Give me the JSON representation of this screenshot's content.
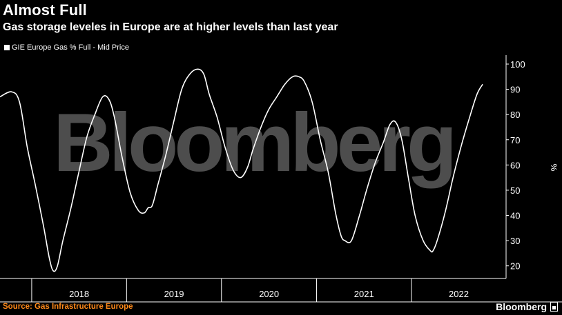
{
  "header": {
    "title": "Almost Full",
    "subtitle": "Gas storage leveles in Europe are at higher levels than last year"
  },
  "footer": {
    "source": "Source: Gas Infrastructure Europe",
    "brand": "Bloomberg"
  },
  "watermark": "Bloomberg",
  "colors": {
    "background": "#000000",
    "line": "#ffffff",
    "source": "#ff8a1a"
  },
  "chart_data": {
    "type": "line",
    "title": "Almost Full",
    "subtitle": "Gas storage leveles in Europe are at higher levels than last year",
    "ylabel": "%",
    "ylim": [
      15,
      103
    ],
    "yticks": [
      20,
      30,
      40,
      50,
      60,
      70,
      80,
      90,
      100
    ],
    "xlim": [
      "2017-09-01",
      "2022-12-31"
    ],
    "xticks": [
      "2018",
      "2019",
      "2020",
      "2021",
      "2022"
    ],
    "legend": "top-left",
    "grid": false,
    "series": [
      {
        "name": "GIE Europe Gas % Full - Mid Price",
        "x": [
          "2017-09-01",
          "2017-10-15",
          "2017-11-15",
          "2017-12-15",
          "2018-01-15",
          "2018-02-15",
          "2018-03-10",
          "2018-03-25",
          "2018-04-10",
          "2018-05-01",
          "2018-06-01",
          "2018-07-01",
          "2018-08-01",
          "2018-09-01",
          "2018-10-01",
          "2018-10-25",
          "2018-11-15",
          "2018-12-15",
          "2019-01-15",
          "2019-02-15",
          "2019-03-10",
          "2019-03-25",
          "2019-04-10",
          "2019-05-01",
          "2019-06-01",
          "2019-07-01",
          "2019-08-01",
          "2019-09-01",
          "2019-10-01",
          "2019-10-25",
          "2019-11-15",
          "2019-12-15",
          "2020-01-15",
          "2020-02-15",
          "2020-03-15",
          "2020-04-10",
          "2020-05-01",
          "2020-06-01",
          "2020-07-01",
          "2020-08-01",
          "2020-09-01",
          "2020-10-01",
          "2020-10-25",
          "2020-11-15",
          "2020-12-15",
          "2021-01-15",
          "2021-02-15",
          "2021-03-15",
          "2021-04-05",
          "2021-04-20",
          "2021-05-15",
          "2021-06-15",
          "2021-07-15",
          "2021-08-15",
          "2021-09-15",
          "2021-10-10",
          "2021-11-01",
          "2021-11-25",
          "2021-12-20",
          "2022-01-15",
          "2022-02-15",
          "2022-03-15",
          "2022-03-25",
          "2022-04-10",
          "2022-05-10",
          "2022-06-10",
          "2022-07-10",
          "2022-08-10",
          "2022-09-10",
          "2022-10-02"
        ],
        "values": [
          87,
          89,
          85,
          67,
          52,
          36,
          23,
          18,
          20,
          30,
          43,
          57,
          71,
          80,
          87,
          86,
          79,
          63,
          49,
          42,
          41,
          43,
          44,
          52,
          64,
          77,
          90,
          96,
          98,
          96,
          88,
          79,
          67,
          58,
          55,
          59,
          66,
          75,
          82,
          87,
          92,
          95,
          95,
          93,
          85,
          70,
          57,
          41,
          32,
          30,
          30,
          40,
          51,
          61,
          69,
          76,
          77,
          70,
          55,
          40,
          30,
          26,
          26,
          30,
          41,
          55,
          67,
          78,
          88,
          92
        ]
      }
    ]
  }
}
